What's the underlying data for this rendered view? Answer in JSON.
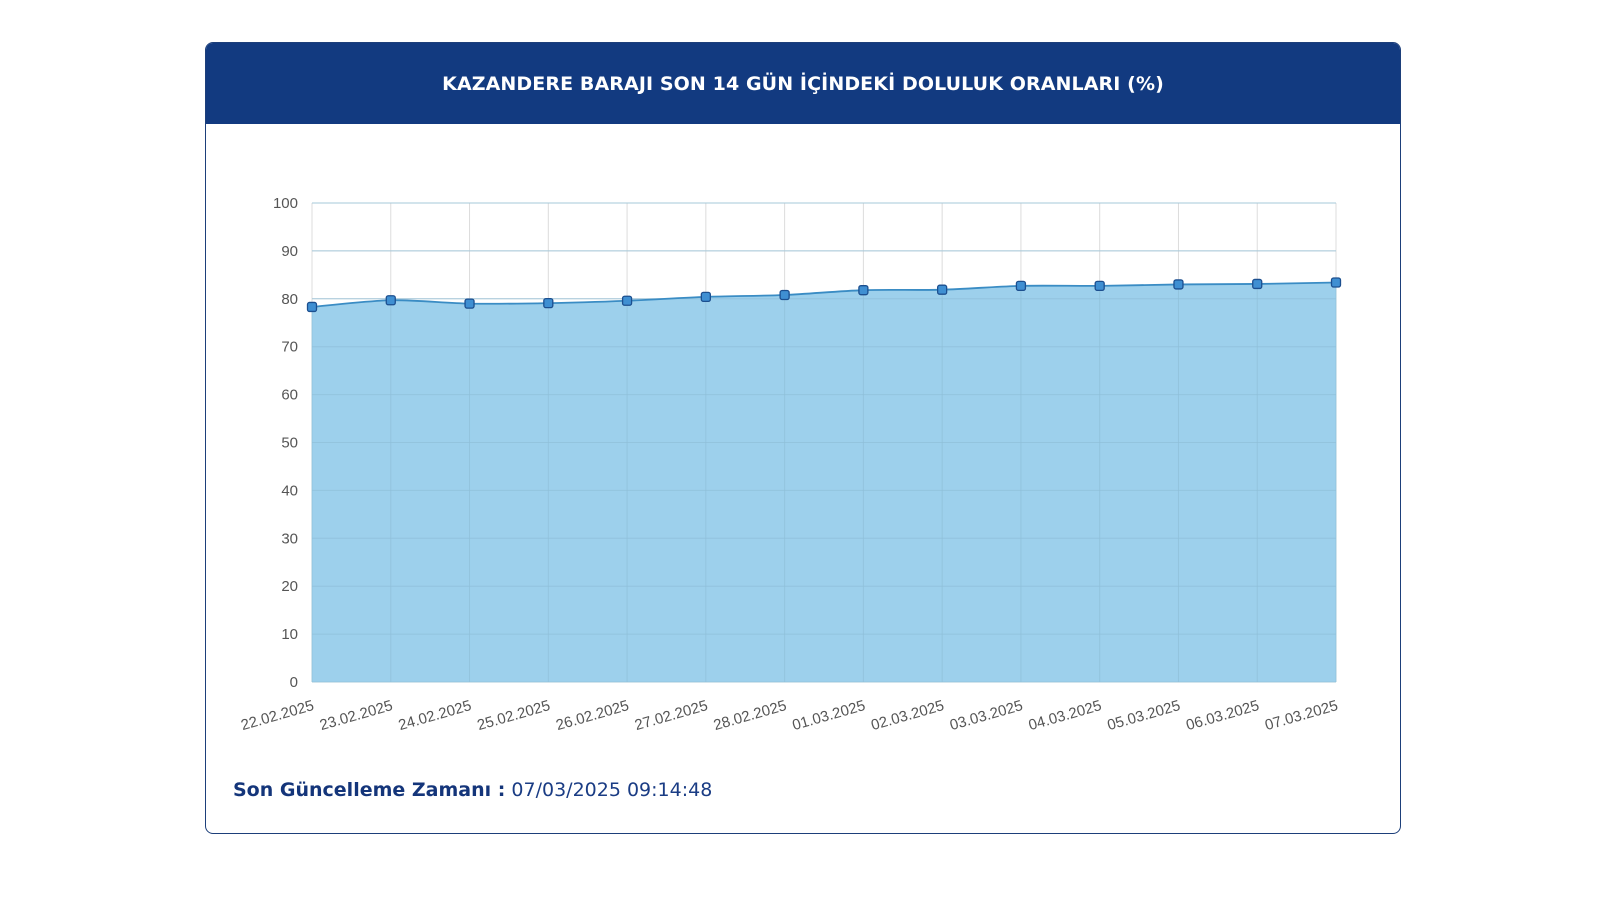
{
  "header": {
    "title": "KAZANDERE BARAJI SON 14 GÜN İÇİNDEKİ DOLULUK ORANLARI (%)"
  },
  "footer": {
    "label": "Son Güncelleme Zamanı :",
    "value": "07/03/2025 09:14:48"
  },
  "colors": {
    "header_bg": "#123a80",
    "area_fill": "#9dd0ec",
    "line": "#3a8cc4",
    "point_fill": "#3f8fd2",
    "point_stroke": "#1c4f8f",
    "grid": "#dcdcdc"
  },
  "chart_data": {
    "type": "area",
    "categories": [
      "22.02.2025",
      "23.02.2025",
      "24.02.2025",
      "25.02.2025",
      "26.02.2025",
      "27.02.2025",
      "28.02.2025",
      "01.03.2025",
      "02.03.2025",
      "03.03.2025",
      "04.03.2025",
      "05.03.2025",
      "06.03.2025",
      "07.03.2025"
    ],
    "series": [
      {
        "values": [
          78.3,
          79.7,
          79.0,
          79.1,
          79.6,
          80.4,
          80.8,
          81.8,
          81.9,
          82.7,
          82.7,
          83.0,
          83.1,
          83.4
        ]
      }
    ],
    "ylim": [
      0,
      100
    ],
    "yticks": [
      0,
      10,
      20,
      30,
      40,
      50,
      60,
      70,
      80,
      90,
      100
    ],
    "grid": true,
    "legend": "none",
    "xlabel": "",
    "ylabel": ""
  }
}
